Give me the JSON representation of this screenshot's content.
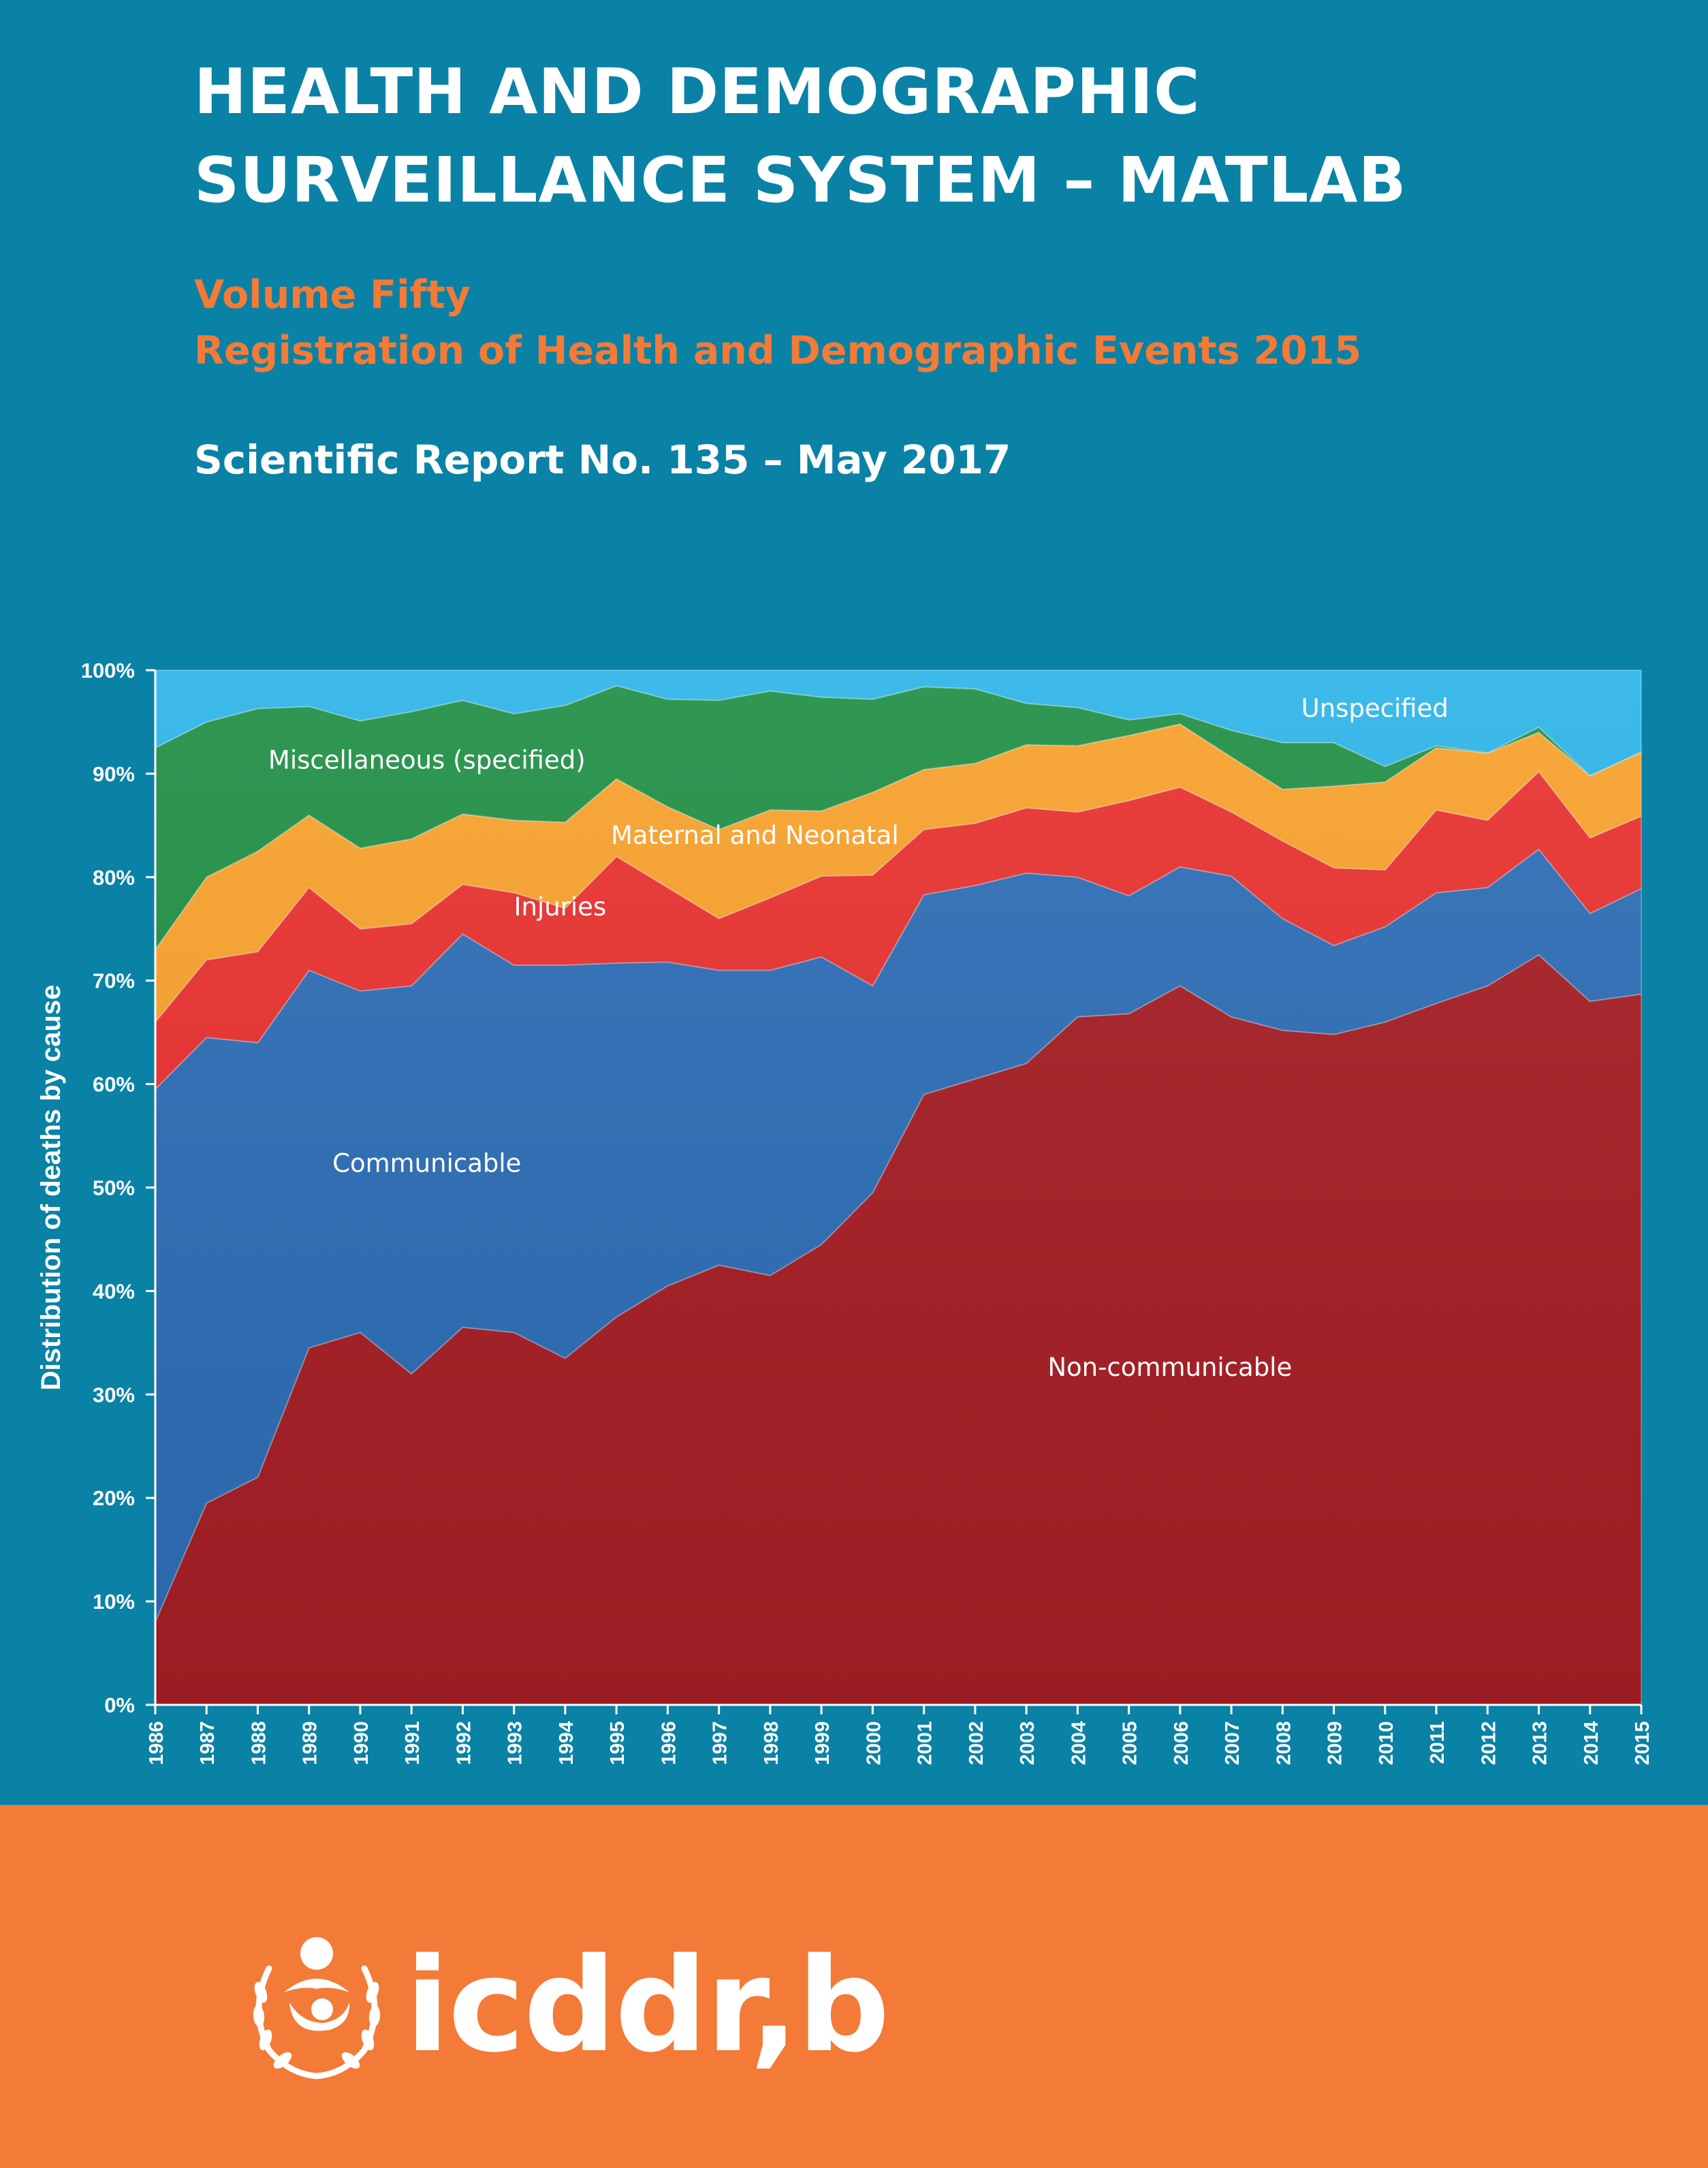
{
  "header": {
    "title_line1": "HEALTH AND DEMOGRAPHIC",
    "title_line2": "SURVEILLANCE SYSTEM – MATLAB",
    "volume": "Volume Fifty",
    "registration": "Registration of Health and Demographic Events 2015",
    "report": "Scientific Report No. 135 – May 2017"
  },
  "colors": {
    "background": "#0a82a6",
    "accent": "#f37a37",
    "non_communicable": "#a51e24",
    "communicable": "#2c6db5",
    "injuries": "#e8302e",
    "maternal_neonatal": "#f8a12b",
    "miscellaneous": "#1f8f45",
    "unspecified": "#2db4e8"
  },
  "chart_data": {
    "type": "area",
    "stacked": true,
    "ylabel": "Distribution of deaths by cause",
    "xlabel": "",
    "ylim": [
      0,
      100
    ],
    "y_ticks": [
      "0%",
      "10%",
      "20%",
      "30%",
      "40%",
      "50%",
      "60%",
      "70%",
      "80%",
      "90%",
      "100%"
    ],
    "categories": [
      "1986",
      "1987",
      "1988",
      "1989",
      "1990",
      "1991",
      "1992",
      "1993",
      "1994",
      "1995",
      "1996",
      "1997",
      "1998",
      "1999",
      "2000",
      "2001",
      "2002",
      "2003",
      "2004",
      "2005",
      "2006",
      "2007",
      "2008",
      "2009",
      "2010",
      "2011",
      "2012",
      "2013",
      "2014",
      "2015"
    ],
    "series": [
      {
        "name": "Non-communicable",
        "color_key": "non_communicable",
        "values": [
          8,
          19.5,
          22,
          34.5,
          36,
          32,
          36.5,
          36,
          33.5,
          37.5,
          40.5,
          42.5,
          41.5,
          44.5,
          49.5,
          59,
          60.5,
          62,
          66.5,
          66.8,
          69.5,
          66.5,
          65.2,
          64.8,
          66,
          67.8,
          69.5,
          72.5,
          68,
          68.7
        ]
      },
      {
        "name": "Communicable",
        "color_key": "communicable",
        "values": [
          51.5,
          45,
          42,
          36.5,
          33,
          37.5,
          38,
          35.5,
          38,
          34.2,
          31.3,
          28.5,
          29.5,
          27.8,
          20,
          19.3,
          18.7,
          18.4,
          13.5,
          11.4,
          11.5,
          13.6,
          10.8,
          8.6,
          9.2,
          10.7,
          9.5,
          10.2,
          8.5,
          10.2
        ]
      },
      {
        "name": "Injuries",
        "color_key": "injuries",
        "values": [
          6.5,
          7.5,
          8.8,
          8,
          6,
          6,
          4.8,
          7,
          5.5,
          10.3,
          7.2,
          5,
          7,
          7.8,
          10.7,
          6.3,
          6,
          6.3,
          6.3,
          9.2,
          7.7,
          6.2,
          7.5,
          7.5,
          5.5,
          8,
          6.5,
          7.5,
          7.3,
          7
        ]
      },
      {
        "name": "Maternal and Neonatal",
        "color_key": "maternal_neonatal",
        "values": [
          7,
          8,
          9.7,
          7,
          7.8,
          8.2,
          6.8,
          7,
          8.3,
          7.5,
          7.8,
          8.6,
          8.5,
          6.3,
          8,
          5.8,
          5.8,
          6.1,
          6.4,
          6.3,
          6.1,
          5.3,
          5,
          7.9,
          8.5,
          6,
          6.5,
          3.8,
          6,
          6.2
        ]
      },
      {
        "name": "Miscellaneous (specified)",
        "color_key": "miscellaneous",
        "values": [
          19.5,
          15,
          13.8,
          10.5,
          12.3,
          12.3,
          11,
          10.3,
          11.3,
          9,
          10.4,
          12.5,
          11.5,
          11,
          9,
          8,
          7.2,
          4,
          3.7,
          1.5,
          1,
          2.6,
          4.5,
          4.2,
          1.5,
          0.2,
          0,
          0.5,
          0,
          0
        ]
      },
      {
        "name": "Unspecified",
        "color_key": "unspecified",
        "values": [
          7.5,
          5,
          3.7,
          3.5,
          4.9,
          4,
          2.9,
          4.2,
          3.4,
          1.5,
          2.8,
          2.9,
          2,
          2.6,
          2.8,
          1.6,
          1.8,
          3.2,
          3.6,
          4.8,
          4.2,
          5.8,
          7,
          7,
          9.3,
          7.3,
          8,
          5.5,
          10.2,
          7.9
        ]
      }
    ],
    "annotations": [
      {
        "text": "Unspecified",
        "year": 2009.8,
        "value": 95.5
      },
      {
        "text": "Miscellaneous (specified)",
        "year": 1991.3,
        "value": 90.5
      },
      {
        "text": "Maternal and Neonatal",
        "year": 1997.7,
        "value": 83.2
      },
      {
        "text": "Injuries",
        "year": 1993.9,
        "value": 76.3
      },
      {
        "text": "Communicable",
        "year": 1991.3,
        "value": 51.5
      },
      {
        "text": "Non-communicable",
        "year": 2005.8,
        "value": 31.8
      }
    ]
  },
  "footer": {
    "logo_text": "icddr,b"
  }
}
